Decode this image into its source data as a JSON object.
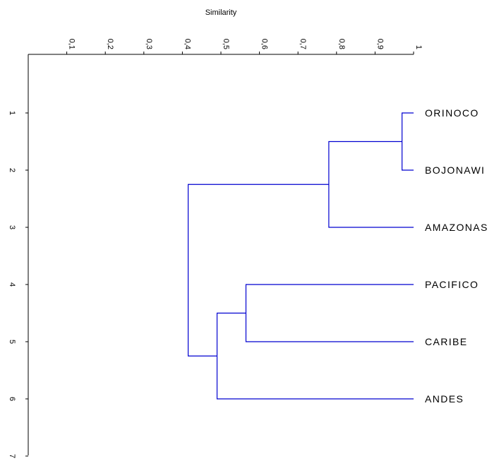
{
  "chart_data": {
    "type": "dendrogram",
    "title": "Similarity",
    "x_axis": {
      "label": "Similarity",
      "range": [
        0,
        1
      ],
      "ticks": [
        0.1,
        0.2,
        0.3,
        0.4,
        0.5,
        0.6,
        0.7,
        0.8,
        0.9,
        1
      ],
      "tick_labels": [
        "0,1",
        "0,2",
        "0,3",
        "0,4",
        "0,5",
        "0,6",
        "0,7",
        "0,8",
        "0,9",
        "1"
      ]
    },
    "y_axis": {
      "range": [
        0,
        7
      ],
      "ticks": [
        1,
        2,
        3,
        4,
        5,
        6,
        7
      ],
      "tick_labels": [
        "1",
        "2",
        "3",
        "4",
        "5",
        "6",
        "7"
      ]
    },
    "leaves": [
      {
        "label": "ORINOCO",
        "position": 1
      },
      {
        "label": "BOJONAWI",
        "position": 2
      },
      {
        "label": "AMAZONAS",
        "position": 3
      },
      {
        "label": "PACIFICO",
        "position": 4
      },
      {
        "label": "CARIBE",
        "position": 5
      },
      {
        "label": "ANDES",
        "position": 6
      }
    ],
    "merges": [
      {
        "id": "m1",
        "left": "ORINOCO",
        "right": "BOJONAWI",
        "similarity": 0.97
      },
      {
        "id": "m2",
        "left": "m1",
        "right": "AMAZONAS",
        "similarity": 0.78
      },
      {
        "id": "m3",
        "left": "PACIFICO",
        "right": "CARIBE",
        "similarity": 0.565
      },
      {
        "id": "m4",
        "left": "m3",
        "right": "ANDES",
        "similarity": 0.49
      },
      {
        "id": "m5",
        "left": "m2",
        "right": "m4",
        "similarity": 0.415
      }
    ],
    "line_color": "#0000d0",
    "axis_color": "#000000",
    "grid": false
  }
}
